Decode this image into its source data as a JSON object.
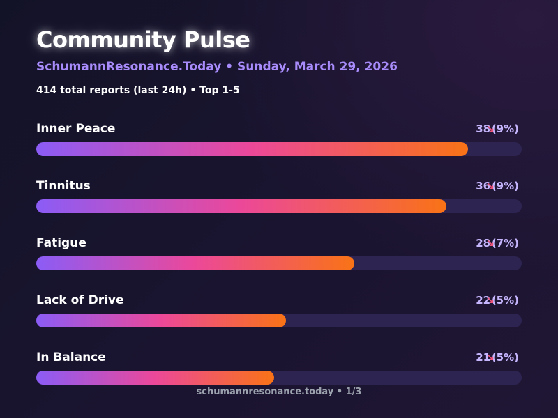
{
  "header": {
    "title": "Community Pulse",
    "subtitle": "SchumannResonance.Today • Sunday, March 29, 2026",
    "summary": "414 total reports (last 24h) • Top 1-5"
  },
  "chart_data": {
    "type": "bar",
    "orientation": "horizontal",
    "title": "Community Pulse",
    "categories": [
      "Inner Peace",
      "Tinnitus",
      "Fatigue",
      "Lack of Drive",
      "In Balance"
    ],
    "values": [
      38,
      36,
      28,
      22,
      21
    ],
    "percent_labels": [
      "(9%)",
      "(9%)",
      "(7%)",
      "(5%)",
      "(5%)"
    ],
    "trend": [
      "down",
      "down",
      "down",
      "down",
      "down"
    ],
    "bar_fill_fractions": [
      0.89,
      0.845,
      0.655,
      0.515,
      0.49
    ],
    "colors": {
      "gradient_start": "#8b5cf6",
      "gradient_mid": "#ec4899",
      "gradient_end": "#f97316",
      "track": "#2e2452",
      "trend": "#f0527a"
    }
  },
  "footer": {
    "text": "schumannresonance.today • 1/3"
  }
}
